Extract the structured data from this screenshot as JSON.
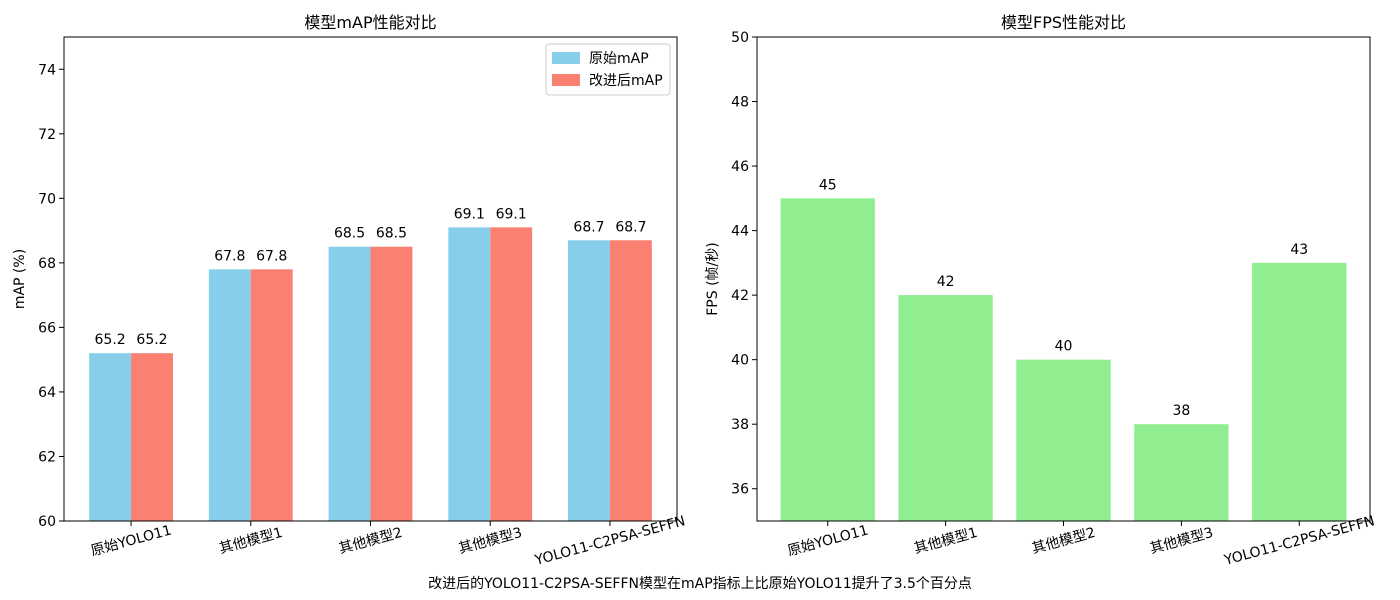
{
  "footnote": "改进后的YOLO11-C2PSA-SEFFN模型在mAP指标上比原始YOLO11提升了3.5个百分点",
  "colors": {
    "original": "#87CEEB",
    "improved": "#FA8072",
    "fps": "#90EE90",
    "axis": "#000000",
    "background": "#ffffff"
  },
  "chart_data": [
    {
      "type": "bar",
      "title": "模型mAP性能对比",
      "xlabel": "",
      "ylabel": "mAP (%)",
      "categories": [
        "原始YOLO11",
        "其他模型1",
        "其他模型2",
        "其他模型3",
        "YOLO11-C2PSA-SEFFN"
      ],
      "series": [
        {
          "name": "原始mAP",
          "color": "#87CEEB",
          "values": [
            65.2,
            67.8,
            68.5,
            69.1,
            68.7
          ],
          "labels": [
            "65.2",
            "67.8",
            "68.5",
            "69.1",
            "68.7"
          ]
        },
        {
          "name": "改进后mAP",
          "color": "#FA8072",
          "values": [
            65.2,
            67.8,
            68.5,
            69.1,
            68.7
          ],
          "labels": [
            "65.2",
            "67.8",
            "68.5",
            "69.1",
            "68.7"
          ]
        }
      ],
      "ylim": [
        60,
        75
      ],
      "yticks": [
        60,
        62,
        64,
        66,
        68,
        70,
        72,
        74
      ],
      "legend": "upper right",
      "grid": false
    },
    {
      "type": "bar",
      "title": "模型FPS性能对比",
      "xlabel": "",
      "ylabel": "FPS (帧/秒)",
      "categories": [
        "原始YOLO11",
        "其他模型1",
        "其他模型2",
        "其他模型3",
        "YOLO11-C2PSA-SEFFN"
      ],
      "series": [
        {
          "name": "FPS",
          "color": "#90EE90",
          "values": [
            45,
            42,
            40,
            38,
            43
          ],
          "labels": [
            "45",
            "42",
            "40",
            "38",
            "43"
          ]
        }
      ],
      "ylim": [
        35,
        50
      ],
      "yticks": [
        36,
        38,
        40,
        42,
        44,
        46,
        48,
        50
      ],
      "grid": false
    }
  ]
}
